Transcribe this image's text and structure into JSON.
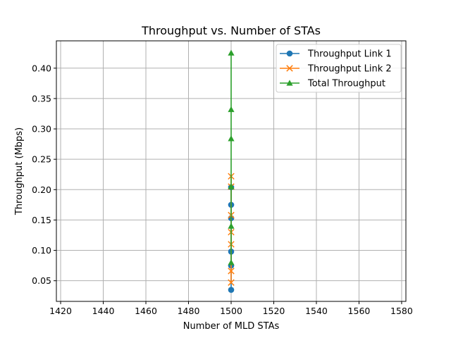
{
  "chart_data": {
    "type": "line",
    "title": "Throughput vs. Number of STAs",
    "xlabel": "Number of MLD STAs",
    "ylabel": "Throughput (Mbps)",
    "xlim": [
      1418,
      1582
    ],
    "ylim": [
      0.016,
      0.445
    ],
    "xticks": [
      1420,
      1440,
      1460,
      1480,
      1500,
      1520,
      1540,
      1560,
      1580
    ],
    "yticks": [
      0.05,
      0.1,
      0.15,
      0.2,
      0.25,
      0.3,
      0.35,
      0.4
    ],
    "ytick_labels": [
      "0.05",
      "0.10",
      "0.15",
      "0.20",
      "0.25",
      "0.30",
      "0.35",
      "0.40"
    ],
    "grid": true,
    "legend_position": "top-right",
    "series": [
      {
        "name": "Throughput Link 1",
        "color": "#1f77b4",
        "marker": "circle",
        "x": [
          1500,
          1500,
          1500,
          1500,
          1500,
          1500
        ],
        "y": [
          0.035,
          0.075,
          0.098,
          0.153,
          0.175,
          0.204
        ]
      },
      {
        "name": "Throughput Link 2",
        "color": "#ff7f0e",
        "marker": "x",
        "x": [
          1500,
          1500,
          1500,
          1500,
          1500,
          1500,
          1500
        ],
        "y": [
          0.047,
          0.066,
          0.11,
          0.13,
          0.158,
          0.205,
          0.222
        ]
      },
      {
        "name": "Total Throughput",
        "color": "#2ca02c",
        "marker": "triangle",
        "x": [
          1500,
          1500,
          1500,
          1500,
          1500,
          1500
        ],
        "y": [
          0.08,
          0.14,
          0.205,
          0.284,
          0.332,
          0.425
        ]
      }
    ]
  }
}
